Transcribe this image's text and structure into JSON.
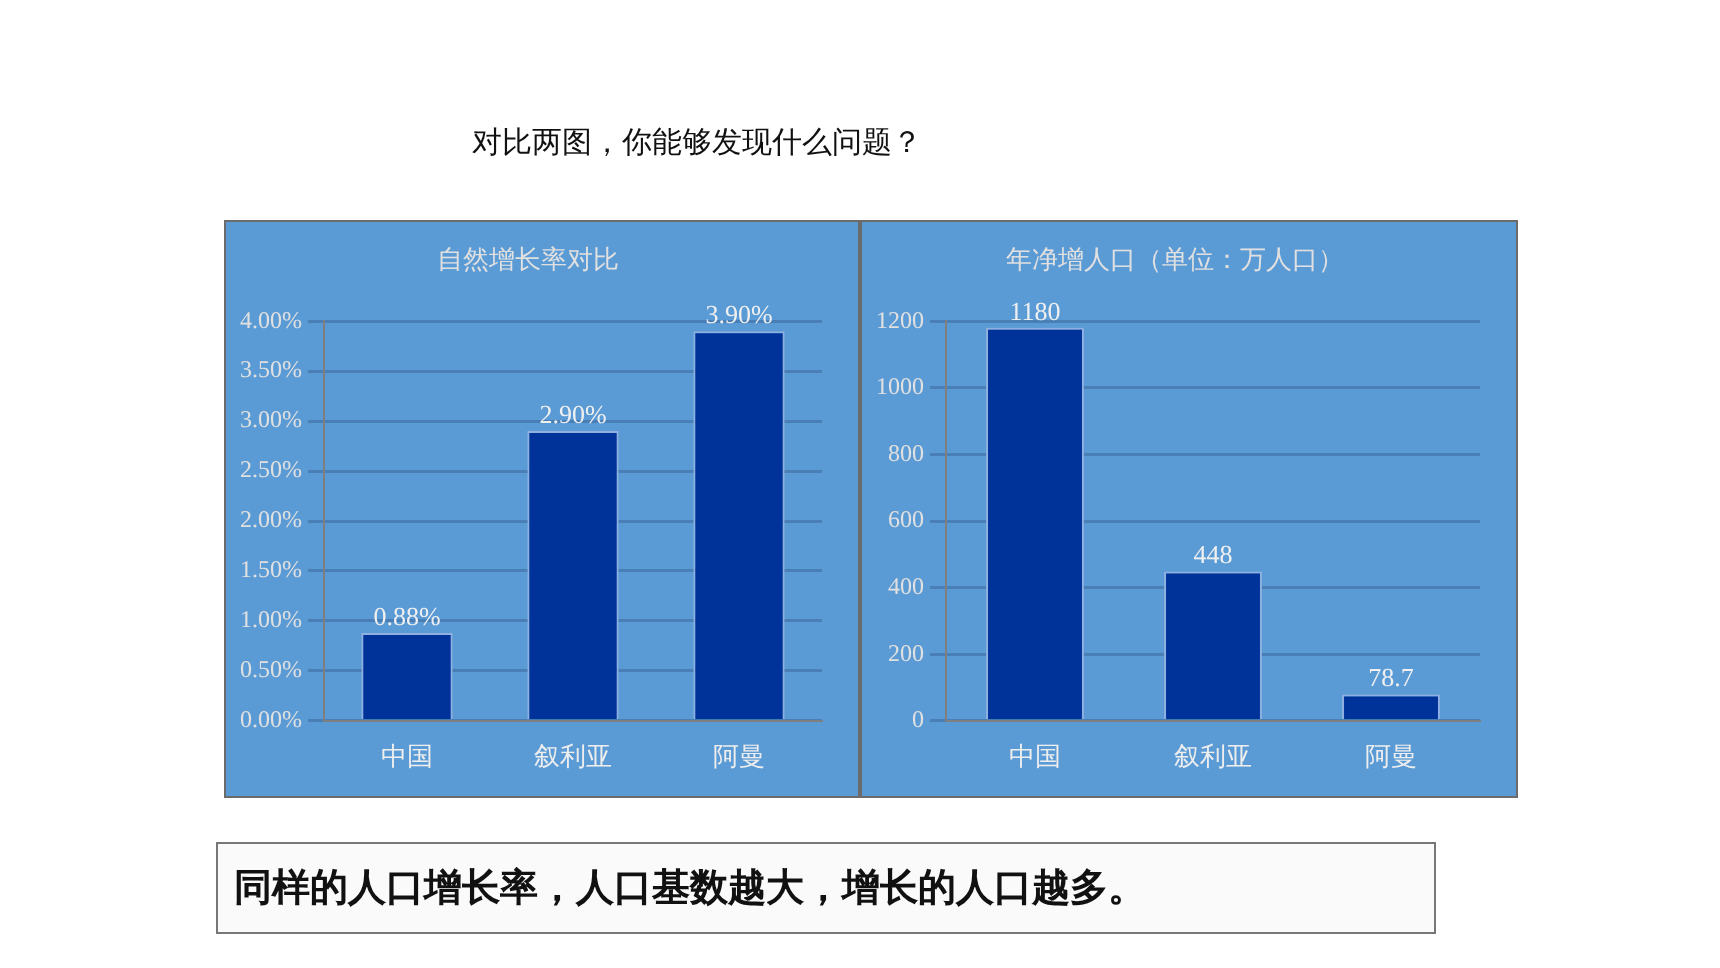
{
  "chart_data": [
    {
      "type": "bar",
      "title": "自然增长率对比",
      "categories": [
        "中国",
        "叙利亚",
        "阿曼"
      ],
      "values": [
        0.88,
        2.9,
        3.9
      ],
      "value_labels": [
        "0.88%",
        "2.90%",
        "3.90%"
      ],
      "color": "#003399",
      "ylim": [
        0,
        4
      ],
      "yticks": [
        {
          "value": 0,
          "label": "0.00%"
        },
        {
          "value": 0.5,
          "label": "0.50%"
        },
        {
          "value": 1,
          "label": "1.00%"
        },
        {
          "value": 1.5,
          "label": "1.50%"
        },
        {
          "value": 2,
          "label": "2.00%"
        },
        {
          "value": 2.5,
          "label": "2.50%"
        },
        {
          "value": 3,
          "label": "3.00%"
        },
        {
          "value": 3.5,
          "label": "3.50%"
        },
        {
          "value": 4,
          "label": "4.00%"
        }
      ],
      "grid": "y",
      "annotations": [
        "对比两图，你能够发现什么问题？"
      ]
    },
    {
      "type": "bar",
      "title": "年净增人口（单位：万人口）",
      "categories": [
        "中国",
        "叙利亚",
        "阿曼"
      ],
      "values": [
        1180,
        448,
        78.7
      ],
      "data_labels": true,
      "color": "#003399",
      "ylim": [
        0,
        1200
      ],
      "yticks": [
        0,
        200,
        400,
        600,
        800,
        1000,
        1200
      ],
      "grid": "y",
      "annotations": [
        "同样的人口增长率，人口基数越大，增长的人口越多。"
      ]
    }
  ]
}
